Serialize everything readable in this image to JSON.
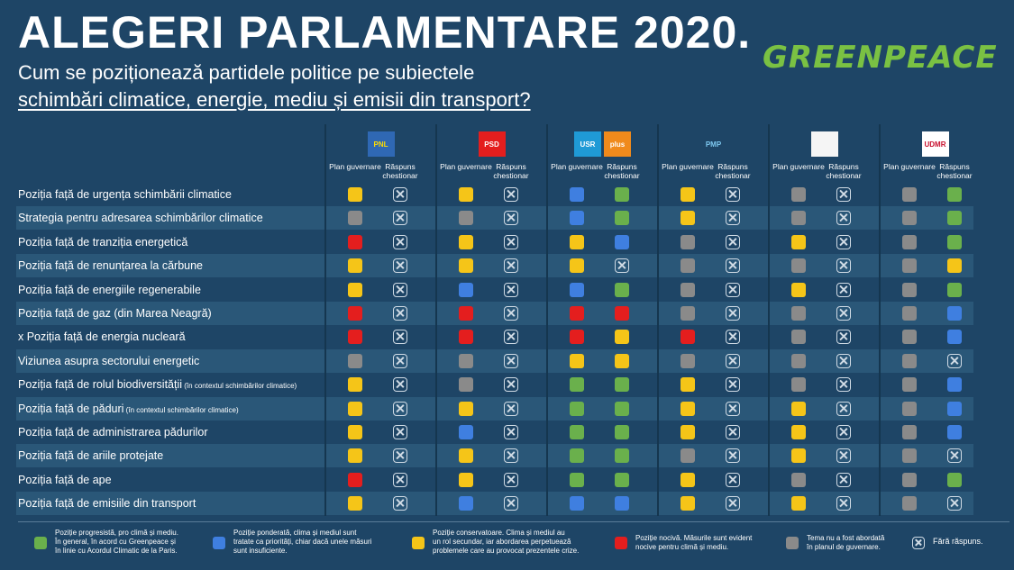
{
  "header": {
    "title": "ALEGERI PARLAMENTARE 2020.",
    "subtitle_line1": "Cum se poziționează partidele politice pe subiectele",
    "subtitle_line2": "schimbări climatice, energie, mediu și emisii din transport?",
    "logo_text": "GREENPEACE"
  },
  "colors": {
    "green": "#6ab04c",
    "blue": "#3f7fe0",
    "yellow": "#f5c518",
    "red": "#e41e1e",
    "gray": "#8a8a8a",
    "background": "#1e4566",
    "row_light": "#2a5778"
  },
  "parties": [
    {
      "id": "pnl",
      "logo": [
        {
          "text": "PNL",
          "bg": "#2f68b4",
          "fg": "#ffdd00"
        }
      ],
      "col1": "Plan guvernare",
      "col2": "Răspuns chestionar"
    },
    {
      "id": "psd",
      "logo": [
        {
          "text": "PSD",
          "bg": "#e41e1e",
          "fg": "#ffffff"
        }
      ],
      "col1": "Plan guvernare",
      "col2": "Răspuns chestionar"
    },
    {
      "id": "usr-plus",
      "logo": [
        {
          "text": "USR",
          "bg": "#1f9ad6",
          "fg": "#ffffff"
        },
        {
          "text": "plus",
          "bg": "#f08a1c",
          "fg": "#ffffff"
        }
      ],
      "col1": "Plan guvernare",
      "col2": "Răspuns chestionar"
    },
    {
      "id": "pmp",
      "logo": [
        {
          "text": "PMP",
          "bg": "#1e4566",
          "fg": "#7ec8f0"
        }
      ],
      "col1": "Plan guvernare",
      "col2": "Răspuns chestionar"
    },
    {
      "id": "pro-romania",
      "logo": [
        {
          "text": "",
          "bg": "#f5f5f5",
          "fg": "#333333"
        }
      ],
      "col1": "Plan guvernare",
      "col2": "Răspuns chestionar"
    },
    {
      "id": "udmr",
      "logo": [
        {
          "text": "UDMR",
          "bg": "#ffffff",
          "fg": "#c8102e"
        }
      ],
      "col1": "Plan guvernare",
      "col2": "Răspuns chestionar"
    }
  ],
  "rows": [
    {
      "label": "Poziția față de urgența schimbării climatice",
      "note": "",
      "cells": [
        "Y",
        "X",
        "Y",
        "X",
        "B",
        "G",
        "Y",
        "X",
        "N",
        "X",
        "N",
        "G"
      ]
    },
    {
      "label": "Strategia pentru adresarea schimbărilor climatice",
      "note": "",
      "cells": [
        "N",
        "X",
        "N",
        "X",
        "B",
        "G",
        "Y",
        "X",
        "N",
        "X",
        "N",
        "G"
      ]
    },
    {
      "label": "Poziția față de tranziția energetică",
      "note": "",
      "cells": [
        "R",
        "X",
        "Y",
        "X",
        "Y",
        "B",
        "N",
        "X",
        "Y",
        "X",
        "N",
        "G"
      ]
    },
    {
      "label": "Poziția față de renunțarea la cărbune",
      "note": "",
      "cells": [
        "Y",
        "X",
        "Y",
        "X",
        "Y",
        "X",
        "N",
        "X",
        "N",
        "X",
        "N",
        "Y"
      ]
    },
    {
      "label": "Poziția față de energiile regenerabile",
      "note": "",
      "cells": [
        "Y",
        "X",
        "B",
        "X",
        "B",
        "G",
        "N",
        "X",
        "Y",
        "X",
        "N",
        "G"
      ]
    },
    {
      "label": "Poziția față de gaz (din Marea Neagră)",
      "note": "",
      "cells": [
        "R",
        "X",
        "R",
        "X",
        "R",
        "R",
        "N",
        "X",
        "N",
        "X",
        "N",
        "B"
      ]
    },
    {
      "label": "x Poziția față de energia nucleară",
      "note": "",
      "cells": [
        "R",
        "X",
        "R",
        "X",
        "R",
        "Y",
        "R",
        "X",
        "N",
        "X",
        "N",
        "B"
      ]
    },
    {
      "label": "Viziunea asupra sectorului energetic",
      "note": "",
      "cells": [
        "N",
        "X",
        "N",
        "X",
        "Y",
        "Y",
        "N",
        "X",
        "N",
        "X",
        "N",
        "X"
      ]
    },
    {
      "label": "Poziția față de rolul biodiversității",
      "note": "(în contextul schimbărilor climatice)",
      "cells": [
        "Y",
        "X",
        "N",
        "X",
        "G",
        "G",
        "Y",
        "X",
        "N",
        "X",
        "N",
        "B"
      ]
    },
    {
      "label": "Poziția față de păduri",
      "note": "(în contextul schimbărilor climatice)",
      "cells": [
        "Y",
        "X",
        "Y",
        "X",
        "G",
        "G",
        "Y",
        "X",
        "Y",
        "X",
        "N",
        "B"
      ]
    },
    {
      "label": "Poziția față de administrarea pădurilor",
      "note": "",
      "cells": [
        "Y",
        "X",
        "B",
        "X",
        "G",
        "G",
        "Y",
        "X",
        "Y",
        "X",
        "N",
        "B"
      ]
    },
    {
      "label": "Poziția față de ariile protejate",
      "note": "",
      "cells": [
        "Y",
        "X",
        "Y",
        "X",
        "G",
        "G",
        "N",
        "X",
        "Y",
        "X",
        "N",
        "X"
      ]
    },
    {
      "label": "Poziția față de ape",
      "note": "",
      "cells": [
        "R",
        "X",
        "Y",
        "X",
        "G",
        "G",
        "Y",
        "X",
        "N",
        "X",
        "N",
        "G"
      ]
    },
    {
      "label": "Poziția față de emisiile din transport",
      "note": "",
      "cells": [
        "Y",
        "X",
        "B",
        "X",
        "B",
        "B",
        "Y",
        "X",
        "Y",
        "X",
        "N",
        "X"
      ]
    }
  ],
  "legend": [
    {
      "type": "G",
      "text": "Poziție progresistă, pro climă și mediu.\nÎn general, în acord cu Greenpeace și\nîn linie cu Acordul Climatic de la Paris."
    },
    {
      "type": "B",
      "text": "Poziție ponderată, clima și mediul sunt\ntratate ca priorități, chiar dacă unele măsuri\nsunt insuficiente."
    },
    {
      "type": "Y",
      "text": "Poziție conservatoare. Clima și mediul au\nun rol secundar, iar abordarea perpetuează\nproblemele care au provocat prezentele crize."
    },
    {
      "type": "R",
      "text": "Poziție nocivă. Măsurile sunt evident\nnocive pentru climă și mediu."
    },
    {
      "type": "N",
      "text": "Tema nu a fost abordată\nîn planul de guvernare."
    },
    {
      "type": "X",
      "text": "Fără răspuns."
    }
  ]
}
